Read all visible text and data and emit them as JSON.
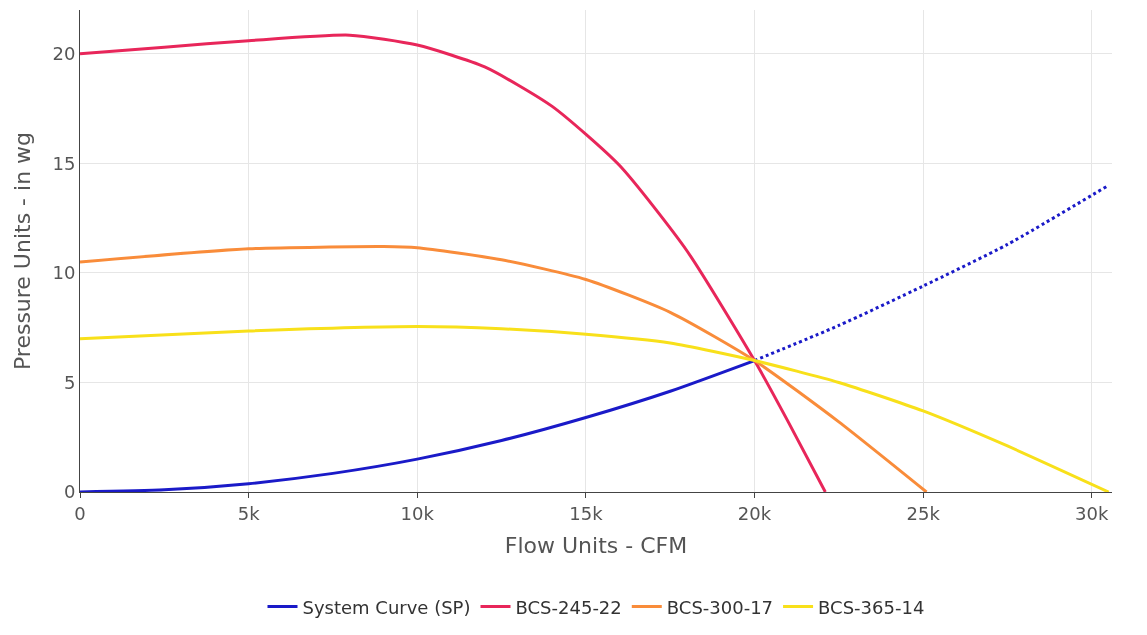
{
  "chart_data": {
    "type": "line",
    "xlabel": "Flow Units - CFM",
    "ylabel": "Pressure Units - in wg",
    "xlim": [
      0,
      30600
    ],
    "ylim": [
      0,
      22
    ],
    "xticks": [
      0,
      {
        "value": 5000,
        "label": "5k"
      },
      {
        "value": 10000,
        "label": "10k"
      },
      {
        "value": 15000,
        "label": "15k"
      },
      {
        "value": 20000,
        "label": "20k"
      },
      {
        "value": 25000,
        "label": "25k"
      },
      {
        "value": 30000,
        "label": "30k"
      }
    ],
    "yticks": [
      0,
      5,
      10,
      15,
      20
    ],
    "grid": true,
    "legend": "bottom",
    "marker": "none",
    "series": [
      {
        "name": "System Curve (SP)",
        "color": "#1a1ac8",
        "line_style": "solid",
        "x": [
          0,
          2500,
          5000,
          7500,
          10000,
          12500,
          15000,
          17500,
          20000
        ],
        "values": [
          0,
          0.1,
          0.38,
          0.85,
          1.5,
          2.35,
          3.4,
          4.6,
          6
        ]
      },
      {
        "color": "#1a1ac8",
        "line_style": "dotted",
        "x": [
          20000,
          22500,
          25000,
          27500,
          30500
        ],
        "values": [
          6,
          7.6,
          9.4,
          11.3,
          14
        ]
      },
      {
        "name": "BCS-245-22",
        "color": "#e8265a",
        "line_style": "solid",
        "x": [
          0,
          2500,
          5000,
          8000,
          10000,
          12000,
          14000,
          16000,
          18000,
          20000,
          21000,
          22100
        ],
        "values": [
          20,
          20.3,
          20.6,
          20.85,
          20.4,
          19.4,
          17.6,
          14.9,
          11,
          6,
          3.2,
          0
        ]
      },
      {
        "name": "BCS-300-17",
        "color": "#f98c3a",
        "line_style": "solid",
        "x": [
          0,
          5000,
          9000,
          10000,
          12500,
          15000,
          17500,
          20000,
          22500,
          25100
        ],
        "values": [
          10.5,
          11.1,
          11.2,
          11.15,
          10.6,
          9.7,
          8.2,
          6,
          3.2,
          0
        ]
      },
      {
        "name": "BCS-365-14",
        "color": "#f8e01a",
        "line_style": "solid",
        "x": [
          0,
          5000,
          10000,
          12500,
          15000,
          17500,
          20000,
          22500,
          25000,
          27500,
          30500
        ],
        "values": [
          7,
          7.35,
          7.55,
          7.45,
          7.2,
          6.8,
          6,
          5,
          3.7,
          2.1,
          0
        ]
      }
    ]
  }
}
